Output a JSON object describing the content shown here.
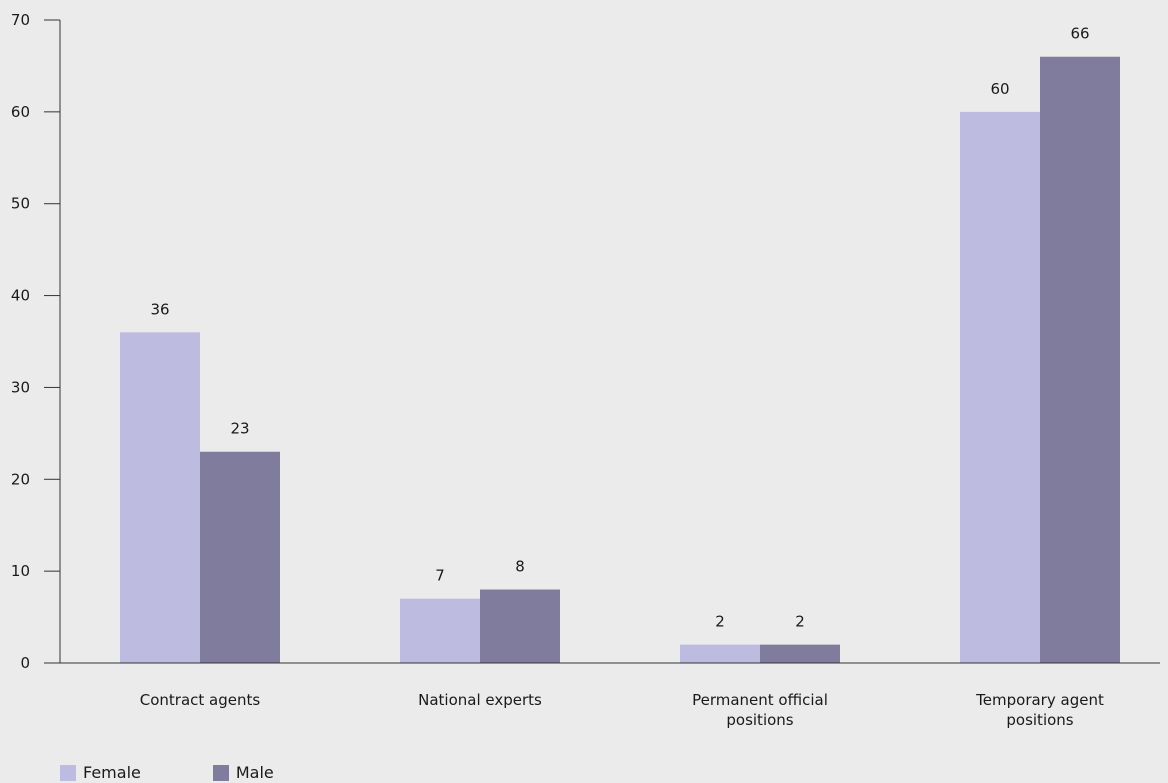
{
  "chart_data": {
    "type": "bar",
    "categories": [
      [
        "Contract agents"
      ],
      [
        "National experts"
      ],
      [
        "Permanent official",
        "positions"
      ],
      [
        "Temporary agent",
        "positions"
      ]
    ],
    "series": [
      {
        "name": "Female",
        "color": "#bdbbdf",
        "values": [
          36,
          7,
          2,
          60
        ]
      },
      {
        "name": "Male",
        "color": "#807c9d",
        "values": [
          23,
          8,
          2,
          66
        ]
      }
    ],
    "ylim": [
      0,
      70
    ],
    "yticks": [
      0,
      10,
      20,
      30,
      40,
      50,
      60,
      70
    ],
    "grid": false,
    "legend_position": "bottom-left",
    "title": "",
    "xlabel": "",
    "ylabel": ""
  }
}
